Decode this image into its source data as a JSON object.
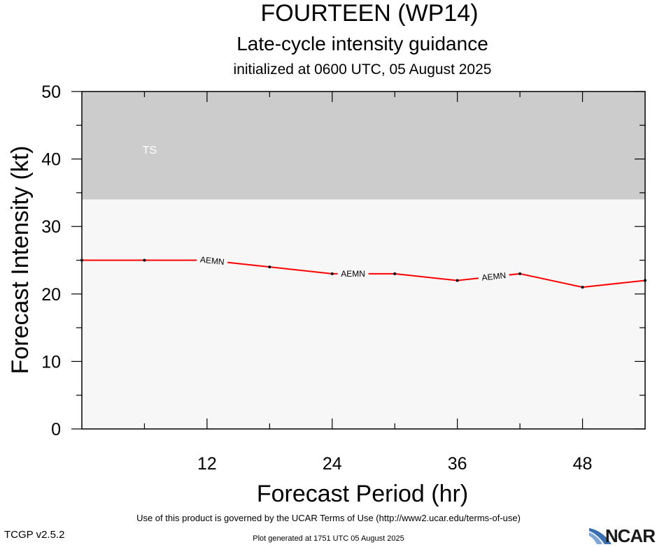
{
  "header": {
    "title": "FOURTEEN (WP14)",
    "subtitle": "Late-cycle intensity guidance",
    "initialized": "initialized at 0600 UTC, 05 August 2025"
  },
  "chart_data": {
    "type": "line",
    "xlabel": "Forecast Period (hr)",
    "ylabel": "Forecast Intensity (kt)",
    "xlim": [
      0,
      54
    ],
    "ylim": [
      0,
      50
    ],
    "x_ticks": [
      12,
      24,
      36,
      48
    ],
    "y_ticks": [
      0,
      10,
      20,
      30,
      40,
      50
    ],
    "bands": [
      {
        "label": "TS",
        "y_from": 34,
        "y_to": 50,
        "color": "#cccccc"
      },
      {
        "label": "",
        "y_from": 0,
        "y_to": 34,
        "color": "#f7f7f7"
      }
    ],
    "series": [
      {
        "name": "AEMN",
        "color": "#ff0000",
        "x": [
          0,
          6,
          12,
          18,
          24,
          30,
          36,
          42,
          48,
          54
        ],
        "values": [
          25,
          25,
          25,
          24,
          23,
          23,
          22,
          23,
          21,
          22
        ],
        "label_at_x": [
          12.5,
          26,
          39.5
        ]
      }
    ]
  },
  "footer": {
    "terms": "Use of this product is governed by the UCAR Terms of Use (http://www2.ucar.edu/terms-of-use)",
    "version": "TCGP v2.5.2",
    "generated": "Plot generated at 1751 UTC   05 August 2025",
    "logo_text": "NCAR"
  }
}
